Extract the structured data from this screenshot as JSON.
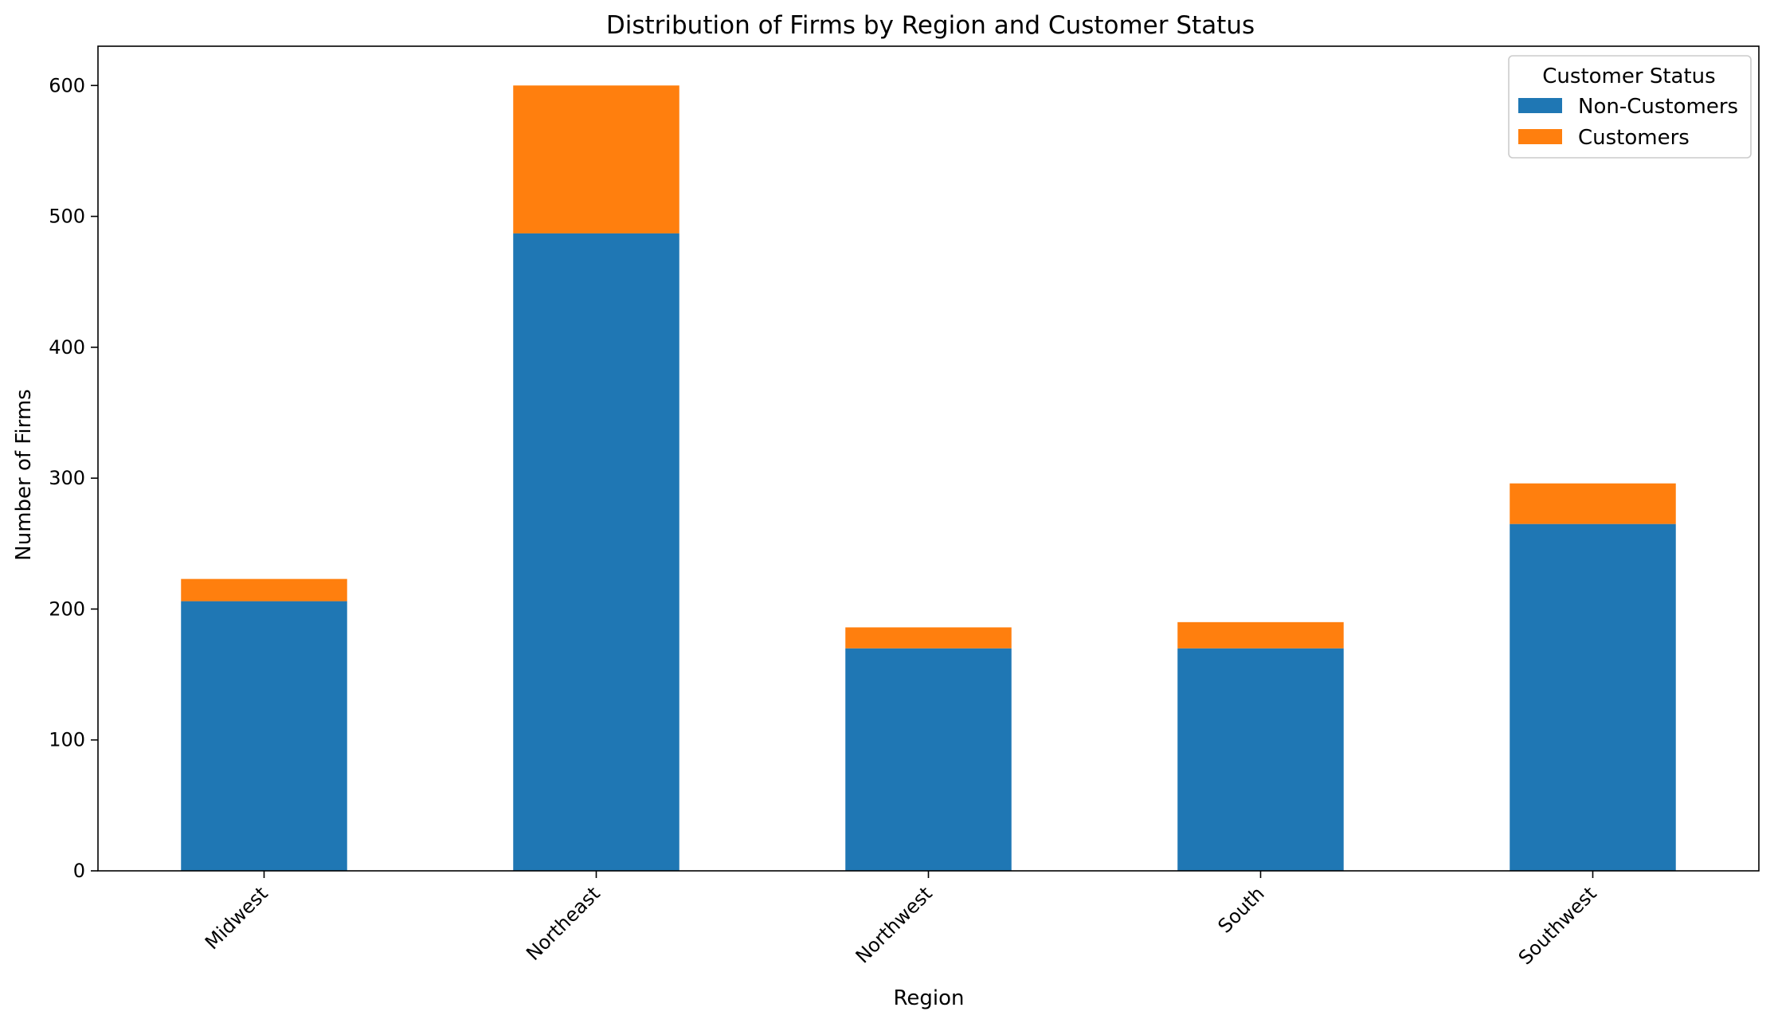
{
  "chart_data": {
    "type": "bar",
    "stacked": true,
    "title": "Distribution of Firms by Region and Customer Status",
    "xlabel": "Region",
    "ylabel": "Number of Firms",
    "categories": [
      "Midwest",
      "Northeast",
      "Northwest",
      "South",
      "Southwest"
    ],
    "series": [
      {
        "name": "Non-Customers",
        "color": "#1f77b4",
        "values": [
          206,
          487,
          170,
          170,
          265
        ]
      },
      {
        "name": "Customers",
        "color": "#ff7f0e",
        "values": [
          17,
          113,
          16,
          20,
          31
        ]
      }
    ],
    "ylim": [
      0,
      630
    ],
    "yticks": [
      0,
      100,
      200,
      300,
      400,
      500,
      600
    ],
    "grid": false,
    "legend": {
      "title": "Customer Status",
      "placement": "top-right"
    }
  }
}
